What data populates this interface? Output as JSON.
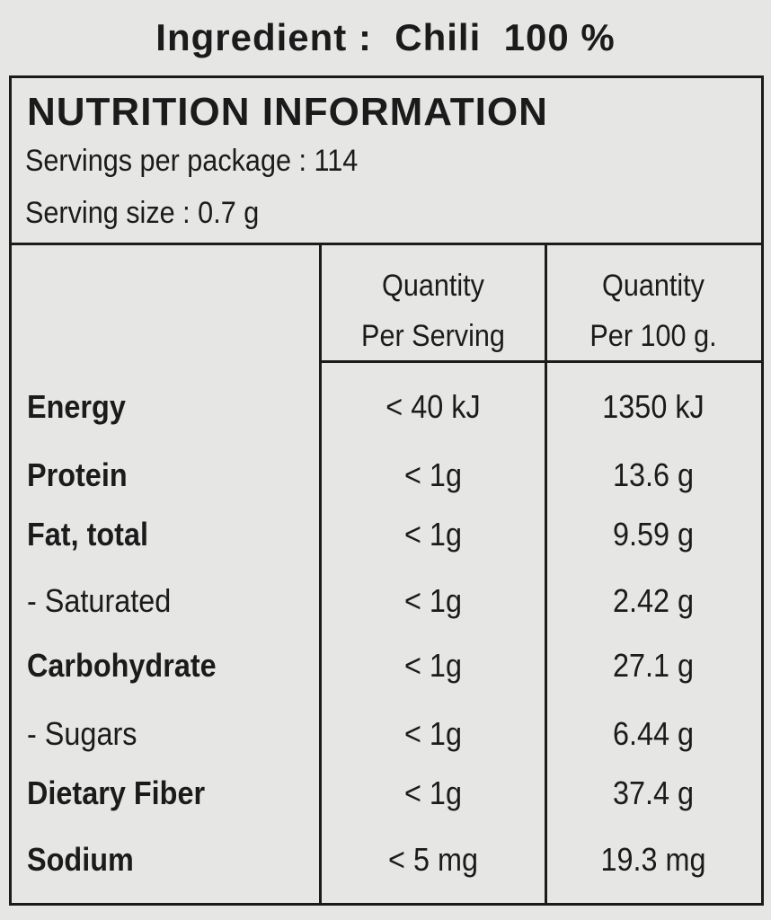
{
  "ingredient": "Ingredient :  Chili  100 %",
  "panel": {
    "title": "NUTRITION INFORMATION",
    "servings_per_package": "Servings per package : 114",
    "serving_size": "Serving size : 0.7 g",
    "table": {
      "headers": [
        [
          "Quantity",
          "Per Serving"
        ],
        [
          "Quantity",
          "Per 100 g."
        ]
      ],
      "rows": [
        [
          "Energy",
          "< 40 kJ",
          "1350 kJ"
        ],
        [
          "Protein",
          "< 1g",
          "13.6 g"
        ],
        [
          "Fat, total",
          "< 1g",
          "9.59 g"
        ],
        [
          "- Saturated",
          "< 1g",
          "2.42 g"
        ],
        [
          "Carbohydrate",
          "< 1g",
          "27.1 g"
        ],
        [
          "- Sugars",
          "< 1g",
          "6.44 g"
        ],
        [
          "Dietary Fiber",
          "< 1g",
          "37.4 g"
        ],
        [
          "Sodium",
          "< 5 mg",
          "19.3 mg"
        ]
      ]
    }
  }
}
